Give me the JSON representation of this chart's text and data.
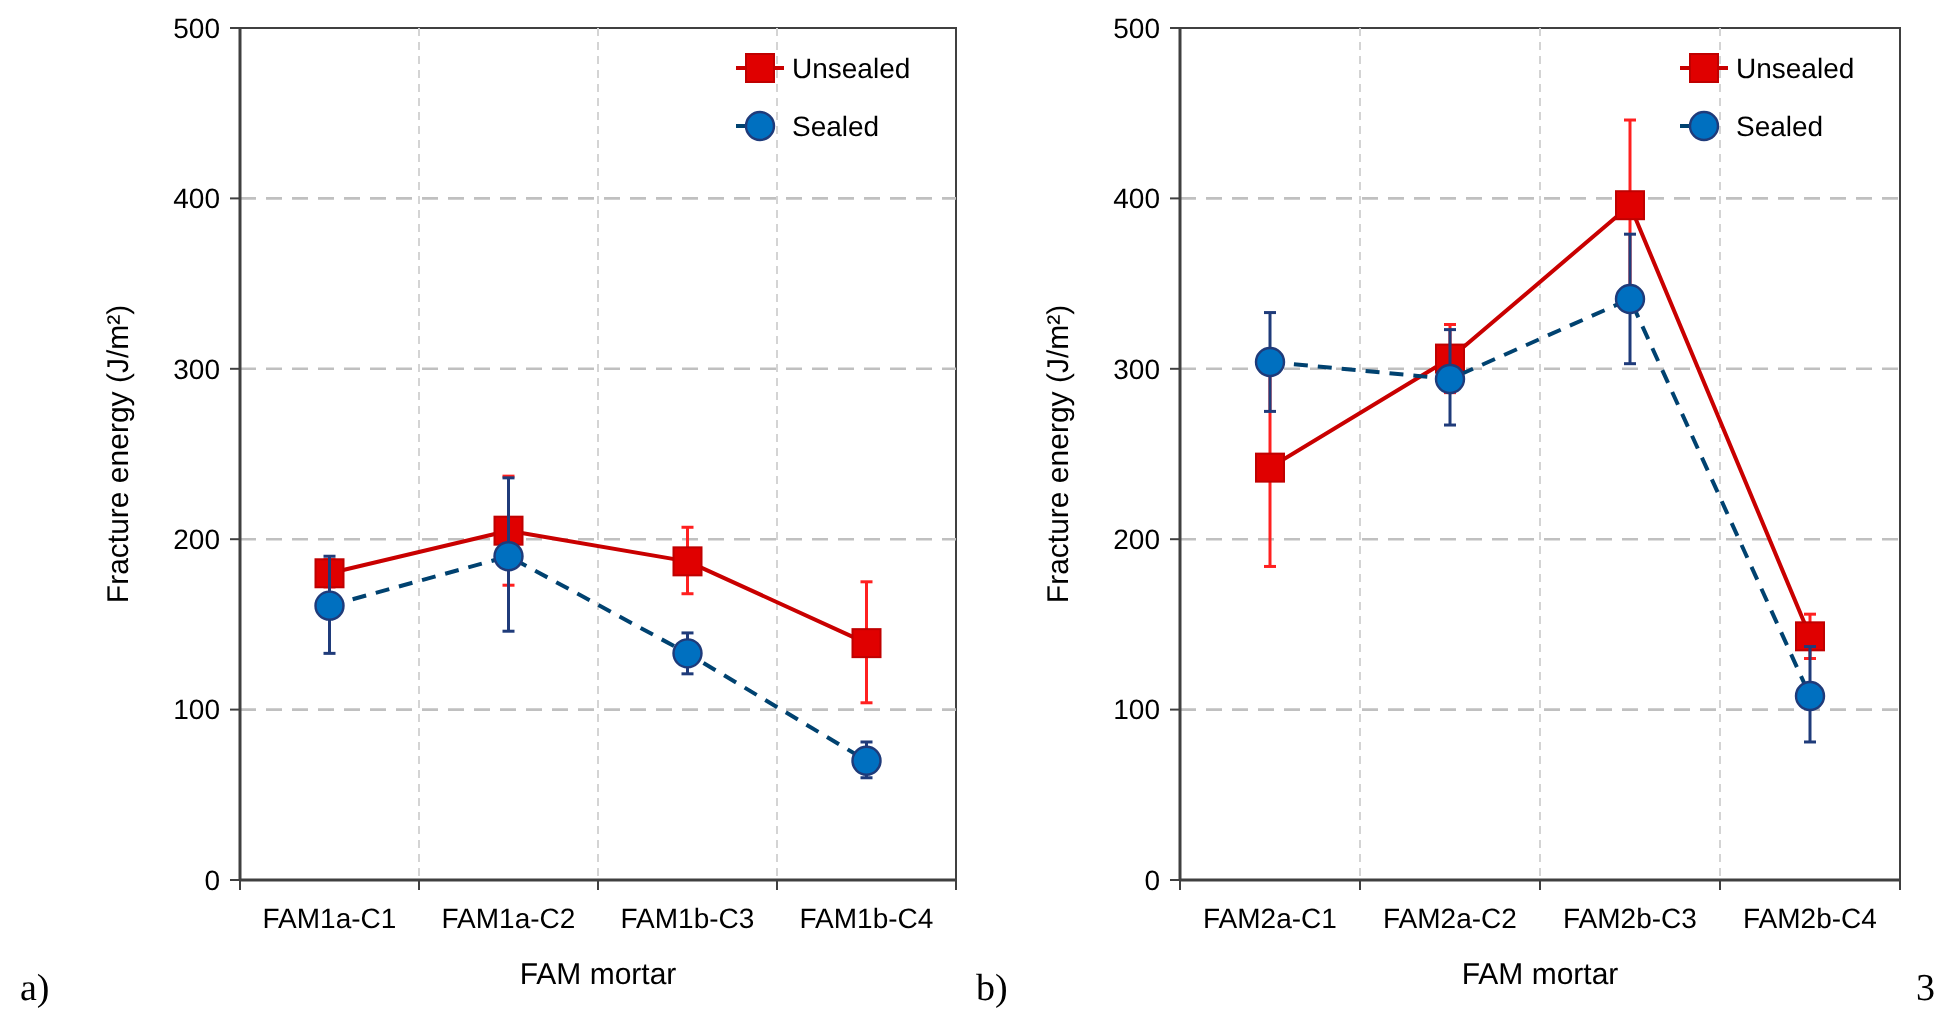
{
  "chart_data": [
    {
      "type": "line",
      "xlabel": "FAM mortar",
      "ylabel": "Fracture energy (J/m²)",
      "categories": [
        "FAM1a-C1",
        "FAM1a-C2",
        "FAM1b-C3",
        "FAM1b-C4"
      ],
      "ylim": [
        0,
        500
      ],
      "yticks": [
        0,
        100,
        200,
        300,
        400,
        500
      ],
      "grid": true,
      "legend": "top right",
      "annotations": [
        "a)"
      ],
      "series": [
        {
          "name": "Unsealed",
          "color": "#e00000",
          "marker": "square",
          "line_style": "solid",
          "values": [
            180,
            205,
            187,
            139
          ],
          "errors": [
            8,
            [
              173,
              237
            ],
            [
              168,
              207
            ],
            [
              104,
              175
            ]
          ]
        },
        {
          "name": "Sealed",
          "color": "#0070c0",
          "marker": "circle",
          "line_style": "dashed",
          "values": [
            161,
            190,
            133,
            70
          ],
          "errors": [
            [
              133,
              190
            ],
            [
              146,
              236
            ],
            [
              121,
              145
            ],
            [
              60,
              81
            ]
          ]
        }
      ]
    },
    {
      "type": "line",
      "xlabel": "FAM mortar",
      "ylabel": "Fracture energy (J/m²)",
      "categories": [
        "FAM2a-C1",
        "FAM2a-C2",
        "FAM2b-C3",
        "FAM2b-C4"
      ],
      "ylim": [
        0,
        500
      ],
      "yticks": [
        0,
        100,
        200,
        300,
        400,
        500
      ],
      "grid": true,
      "legend": "top right",
      "annotations": [
        "b)",
        "3"
      ],
      "series": [
        {
          "name": "Unsealed",
          "color": "#e00000",
          "marker": "square",
          "line_style": "solid",
          "values": [
            242,
            306,
            396,
            143
          ],
          "errors": [
            58,
            [
              286,
              326
            ],
            [
              346,
              446
            ],
            [
              130,
              156
            ]
          ]
        },
        {
          "name": "Sealed",
          "color": "#0070c0",
          "marker": "circle",
          "line_style": "dashed",
          "values": [
            304,
            294,
            341,
            108
          ],
          "errors": [
            [
              275,
              333
            ],
            [
              267,
              323
            ],
            [
              303,
              379
            ],
            [
              81,
              137
            ]
          ]
        }
      ]
    }
  ]
}
